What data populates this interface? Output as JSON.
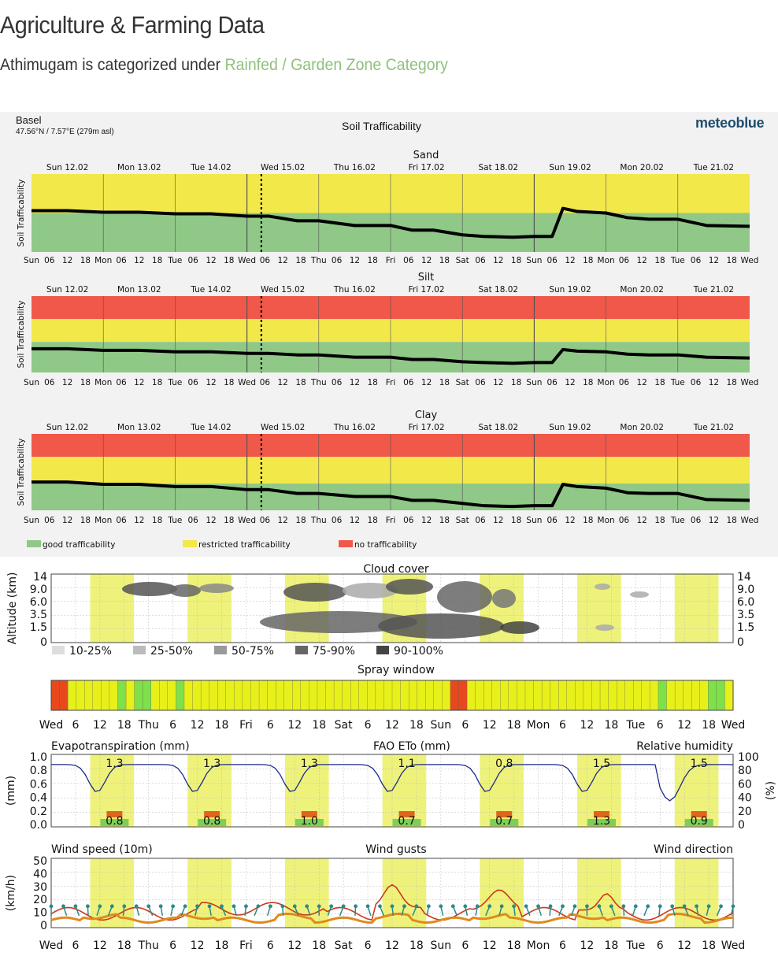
{
  "page": {
    "title": "Agriculture & Farming Data",
    "subtitle_prefix": "Athimugam is categorized under ",
    "subtitle_highlight": "Rainfed / Garden Zone Category"
  },
  "meteoblue": {
    "location": "Basel",
    "coords": "47.56°N / 7.57°E (279m asl)",
    "title": "Soil Trafficability",
    "logo": "meteoblue"
  },
  "colors": {
    "good": "#8fc887",
    "restricted": "#f2e84a",
    "none": "#f0584a",
    "yellow_band": "#eef27a",
    "line": "#000000"
  },
  "chart_data": [
    {
      "type": "line",
      "title": "Sand",
      "ylabel": "Soil Trafficability",
      "day_labels": [
        "Sun 12.02",
        "Mon 13.02",
        "Tue 14.02",
        "Wed 15.02",
        "Thu 16.02",
        "Fri 17.02",
        "Sat 18.02",
        "Sun 19.02",
        "Mon 20.02",
        "Tue 21.02"
      ],
      "hour_labels": [
        "Sun",
        "06",
        "12",
        "18",
        "Mon",
        "06",
        "12",
        "18",
        "Tue",
        "06",
        "12",
        "18",
        "Wed",
        "06",
        "12",
        "18",
        "Thu",
        "06",
        "12",
        "18",
        "Fri",
        "06",
        "12",
        "18",
        "Sat",
        "06",
        "12",
        "18",
        "Sun",
        "06",
        "12",
        "18",
        "Mon",
        "06",
        "12",
        "18",
        "Tue",
        "06",
        "12",
        "18",
        "Wed"
      ],
      "bands": [
        "restricted",
        "good"
      ],
      "band_split": [
        0.5
      ],
      "x": [
        0,
        0.5,
        1,
        1.5,
        2,
        2.5,
        3,
        3.3,
        3.7,
        4,
        4.5,
        5,
        5.3,
        5.6,
        6,
        6.3,
        6.7,
        7,
        7.25,
        7.4,
        7.6,
        8,
        8.3,
        8.6,
        9,
        9.4,
        10
      ],
      "values": [
        0.53,
        0.53,
        0.51,
        0.51,
        0.49,
        0.49,
        0.46,
        0.46,
        0.4,
        0.4,
        0.34,
        0.34,
        0.28,
        0.28,
        0.22,
        0.2,
        0.19,
        0.2,
        0.2,
        0.56,
        0.52,
        0.5,
        0.44,
        0.42,
        0.42,
        0.34,
        0.33
      ]
    },
    {
      "type": "line",
      "title": "Silt",
      "ylabel": "Soil Trafficability",
      "day_labels": [
        "Sun 12.02",
        "Mon 13.02",
        "Tue 14.02",
        "Wed 15.02",
        "Thu 16.02",
        "Fri 17.02",
        "Sat 18.02",
        "Sun 19.02",
        "Mon 20.02",
        "Tue 21.02"
      ],
      "hour_labels": [
        "Sun",
        "06",
        "12",
        "18",
        "Mon",
        "06",
        "12",
        "18",
        "Tue",
        "06",
        "12",
        "18",
        "Wed",
        "06",
        "12",
        "18",
        "Thu",
        "06",
        "12",
        "18",
        "Fri",
        "06",
        "12",
        "18",
        "Sat",
        "06",
        "12",
        "18",
        "Sun",
        "06",
        "12",
        "18",
        "Mon",
        "06",
        "12",
        "18",
        "Tue",
        "06",
        "12",
        "18",
        "Wed"
      ],
      "bands": [
        "none",
        "restricted",
        "good"
      ],
      "band_split": [
        0.7,
        0.4
      ],
      "x": [
        0,
        0.5,
        1,
        1.5,
        2,
        2.5,
        3,
        3.3,
        3.7,
        4,
        4.5,
        5,
        5.3,
        5.6,
        6,
        6.3,
        6.7,
        7,
        7.25,
        7.4,
        7.6,
        8,
        8.3,
        8.6,
        9,
        9.4,
        10
      ],
      "values": [
        0.31,
        0.31,
        0.29,
        0.29,
        0.27,
        0.27,
        0.25,
        0.25,
        0.23,
        0.23,
        0.2,
        0.2,
        0.17,
        0.17,
        0.14,
        0.13,
        0.12,
        0.13,
        0.13,
        0.3,
        0.28,
        0.27,
        0.24,
        0.23,
        0.23,
        0.2,
        0.19
      ]
    },
    {
      "type": "line",
      "title": "Clay",
      "ylabel": "Soil Trafficability",
      "day_labels": [
        "Sun 12.02",
        "Mon 13.02",
        "Tue 14.02",
        "Wed 15.02",
        "Thu 16.02",
        "Fri 17.02",
        "Sat 18.02",
        "Sun 19.02",
        "Mon 20.02",
        "Tue 21.02"
      ],
      "hour_labels": [
        "Sun",
        "06",
        "12",
        "18",
        "Mon",
        "06",
        "12",
        "18",
        "Tue",
        "06",
        "12",
        "18",
        "Wed",
        "06",
        "12",
        "18",
        "Thu",
        "06",
        "12",
        "18",
        "Fri",
        "06",
        "12",
        "18",
        "Sat",
        "06",
        "12",
        "18",
        "Sun",
        "06",
        "12",
        "18",
        "Mon",
        "06",
        "12",
        "18",
        "Tue",
        "06",
        "12",
        "18",
        "Wed"
      ],
      "bands": [
        "none",
        "restricted",
        "good"
      ],
      "band_split": [
        0.7,
        0.35
      ],
      "x": [
        0,
        0.5,
        1,
        1.5,
        2,
        2.5,
        3,
        3.3,
        3.7,
        4,
        4.5,
        5,
        5.3,
        5.6,
        6,
        6.3,
        6.7,
        7,
        7.25,
        7.4,
        7.6,
        8,
        8.3,
        8.6,
        9,
        9.4,
        10
      ],
      "values": [
        0.37,
        0.37,
        0.34,
        0.34,
        0.31,
        0.31,
        0.27,
        0.27,
        0.22,
        0.22,
        0.18,
        0.18,
        0.13,
        0.13,
        0.09,
        0.06,
        0.05,
        0.06,
        0.06,
        0.34,
        0.31,
        0.29,
        0.23,
        0.22,
        0.22,
        0.14,
        0.13
      ]
    },
    {
      "type": "heatmap",
      "title": "Cloud cover",
      "ylabel": "Altitude (km)",
      "y_ticks": [
        "14",
        "9.0",
        "6.0",
        "3.5",
        "1.5",
        "0"
      ],
      "legend": [
        "10-25%",
        "25-50%",
        "50-75%",
        "75-90%",
        "90-100%"
      ]
    },
    {
      "type": "bar",
      "title": "Spray window",
      "x_labels": [
        "Wed",
        "6",
        "12",
        "18",
        "Thu",
        "6",
        "12",
        "18",
        "Fri",
        "6",
        "12",
        "18",
        "Sat",
        "6",
        "12",
        "18",
        "Sun",
        "6",
        "12",
        "18",
        "Mon",
        "6",
        "12",
        "18",
        "Tue",
        "6",
        "12",
        "18",
        "Wed"
      ],
      "cells": [
        "r",
        "r",
        "y",
        "y",
        "y",
        "y",
        "y",
        "y",
        "g",
        "y",
        "g",
        "g",
        "y",
        "y",
        "y",
        "g",
        "y",
        "y",
        "y",
        "y",
        "y",
        "y",
        "y",
        "y",
        "y",
        "y",
        "y",
        "y",
        "y",
        "y",
        "y",
        "y",
        "y",
        "y",
        "y",
        "y",
        "y",
        "y",
        "y",
        "y",
        "y",
        "y",
        "y",
        "y",
        "y",
        "y",
        "y",
        "y",
        "r",
        "r",
        "y",
        "y",
        "y",
        "y",
        "y",
        "y",
        "y",
        "y",
        "y",
        "y",
        "y",
        "y",
        "y",
        "y",
        "y",
        "y",
        "y",
        "y",
        "y",
        "y",
        "y",
        "y",
        "y",
        "g",
        "y",
        "y",
        "y",
        "y",
        "y",
        "g",
        "g",
        "y"
      ]
    },
    {
      "type": "line",
      "legend": [
        "Evapotranspiration (mm)",
        "FAO ETo (mm)",
        "Relative humidity"
      ],
      "ylabel_left": "(mm)",
      "ylabel_right": "(%)",
      "y_ticks_left": [
        "1.0",
        "0.8",
        "0.6",
        "0.4",
        "0.2",
        "0.0"
      ],
      "y_ticks_right": [
        "100",
        "80",
        "60",
        "40",
        "20",
        "0"
      ],
      "fao_eto": [
        "1.3",
        "1.3",
        "1.3",
        "1.1",
        "0.8",
        "1.5",
        "1.5"
      ],
      "evapotranspiration": [
        "0.8",
        "0.8",
        "1.0",
        "0.7",
        "0.7",
        "1.3",
        "0.9"
      ]
    },
    {
      "type": "line",
      "legend": [
        "Wind speed (10m)",
        "Wind gusts",
        "Wind direction"
      ],
      "ylabel": "(km/h)",
      "y_ticks": [
        "50",
        "40",
        "30",
        "20",
        "10",
        "0"
      ],
      "x_labels": [
        "Wed",
        "6",
        "12",
        "18",
        "Thu",
        "6",
        "12",
        "18",
        "Fri",
        "6",
        "12",
        "18",
        "Sat",
        "6",
        "12",
        "18",
        "Sun",
        "6",
        "12",
        "18",
        "Mon",
        "6",
        "12",
        "18",
        "Tue",
        "6",
        "12",
        "18",
        "Wed"
      ]
    }
  ]
}
